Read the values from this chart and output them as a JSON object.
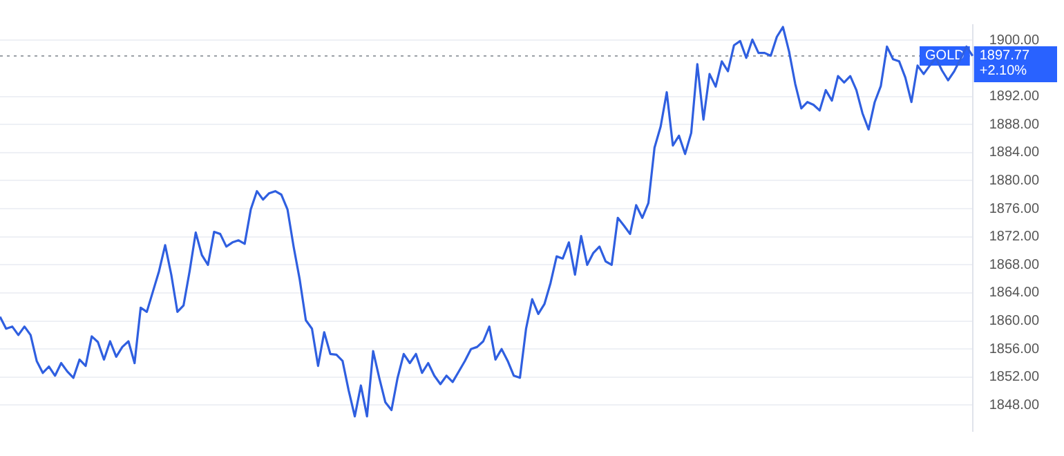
{
  "chart_data": {
    "type": "line",
    "categories": [
      null,
      null,
      null,
      null,
      null,
      null,
      null,
      null,
      null,
      null,
      null,
      null,
      null,
      null,
      null,
      null,
      null,
      null,
      null,
      null,
      null,
      null,
      null,
      null,
      null,
      null,
      null,
      null,
      null,
      null,
      null,
      null,
      null,
      null,
      null,
      null,
      null,
      null,
      null,
      null,
      null,
      null,
      null,
      null,
      null,
      null,
      null,
      null,
      null,
      null,
      null,
      null,
      null,
      null,
      null,
      null,
      null,
      null,
      null,
      null,
      null,
      null,
      null,
      null,
      null,
      null,
      null,
      null,
      null,
      null,
      null,
      null,
      null,
      null,
      null,
      null,
      null,
      null,
      null,
      null,
      null,
      null,
      null,
      null,
      null,
      null,
      null,
      null,
      null,
      null,
      null,
      null,
      null,
      null,
      null,
      null,
      null,
      null,
      null,
      null,
      null,
      null,
      null,
      null,
      null,
      null,
      null,
      null,
      null,
      null,
      null,
      null,
      null,
      null,
      null,
      null,
      null,
      null,
      null,
      null,
      null,
      null,
      null,
      null,
      null,
      null,
      null,
      null,
      null,
      null,
      null,
      null,
      null,
      null,
      null,
      null,
      null,
      null,
      null,
      null,
      null,
      null,
      null,
      null,
      null,
      null,
      null,
      null,
      null,
      null,
      null,
      null,
      null,
      null,
      null,
      null,
      null,
      null,
      null,
      null
    ],
    "series": [
      {
        "color": "#2f5fe0",
        "values": [
          1860.6,
          1858.9,
          1859.2,
          1858.0,
          1859.2,
          1858.0,
          1854.3,
          1852.6,
          1853.5,
          1852.2,
          1854.0,
          1852.8,
          1851.9,
          1854.5,
          1853.6,
          1857.8,
          1857.0,
          1854.5,
          1857.1,
          1854.9,
          1856.3,
          1857.1,
          1854.0,
          1861.9,
          1861.3,
          1864.2,
          1867.1,
          1870.8,
          1866.6,
          1861.3,
          1862.2,
          1867.1,
          1872.6,
          1869.4,
          1868.0,
          1872.7,
          1872.4,
          1870.6,
          1871.2,
          1871.5,
          1871.0,
          1875.9,
          1878.5,
          1877.3,
          1878.2,
          1878.5,
          1878.0,
          1875.9,
          1870.6,
          1865.9,
          1860.1,
          1858.9,
          1853.6,
          1858.4,
          1855.3,
          1855.2,
          1854.3,
          1850.1,
          1846.4,
          1850.8,
          1846.4,
          1855.7,
          1851.9,
          1848.4,
          1847.3,
          1851.9,
          1855.3,
          1854.0,
          1855.3,
          1852.6,
          1854.0,
          1852.2,
          1851.0,
          1852.2,
          1851.3,
          1852.8,
          1854.3,
          1856.0,
          1856.3,
          1857.1,
          1859.2,
          1854.5,
          1856.0,
          1854.3,
          1852.2,
          1851.9,
          1858.9,
          1863.1,
          1861.0,
          1862.4,
          1865.4,
          1869.2,
          1868.9,
          1871.2,
          1866.6,
          1872.1,
          1868.0,
          1869.7,
          1870.6,
          1868.5,
          1868.0,
          1874.7,
          1873.6,
          1872.4,
          1876.5,
          1874.7,
          1876.8,
          1884.7,
          1887.7,
          1892.6,
          1885.0,
          1886.4,
          1883.8,
          1886.8,
          1896.6,
          1888.7,
          1895.2,
          1893.4,
          1897.0,
          1895.6,
          1899.3,
          1899.9,
          1897.5,
          1900.1,
          1898.2,
          1898.2,
          1897.8,
          1900.5,
          1901.9,
          1898.4,
          1893.8,
          1890.3,
          1891.2,
          1890.8,
          1890.0,
          1892.9,
          1891.4,
          1894.9,
          1894.0,
          1894.9,
          1892.9,
          1889.6,
          1887.3,
          1891.2,
          1893.5,
          1899.1,
          1897.3,
          1897.0,
          1894.7,
          1891.2,
          1896.4,
          1895.2,
          1896.4,
          1897.5,
          1895.7,
          1894.3,
          1895.6,
          1897.3,
          1899.1,
          1897.77
        ]
      }
    ],
    "ylim": [
      1844.3,
      1902.2
    ],
    "yticks": [
      {
        "value": 1848,
        "label": "1848.00"
      },
      {
        "value": 1852,
        "label": "1852.00"
      },
      {
        "value": 1856,
        "label": "1856.00"
      },
      {
        "value": 1860,
        "label": "1860.00"
      },
      {
        "value": 1864,
        "label": "1864.00"
      },
      {
        "value": 1868,
        "label": "1868.00"
      },
      {
        "value": 1872,
        "label": "1872.00"
      },
      {
        "value": 1876,
        "label": "1876.00"
      },
      {
        "value": 1880,
        "label": "1880.00"
      },
      {
        "value": 1884,
        "label": "1884.00"
      },
      {
        "value": 1888,
        "label": "1888.00"
      },
      {
        "value": 1892,
        "label": "1892.00"
      },
      {
        "value": 1900,
        "label": "1900.00"
      }
    ],
    "tick_labels": "y",
    "grid": "y",
    "legend": false,
    "ref_lines": [
      {
        "axis": "y",
        "value": 1897.77,
        "label": "GOLD",
        "color": "#9aa0a6",
        "line_style": "dotted"
      }
    ],
    "annotations": [
      "1897.77",
      "+2.10%"
    ]
  }
}
